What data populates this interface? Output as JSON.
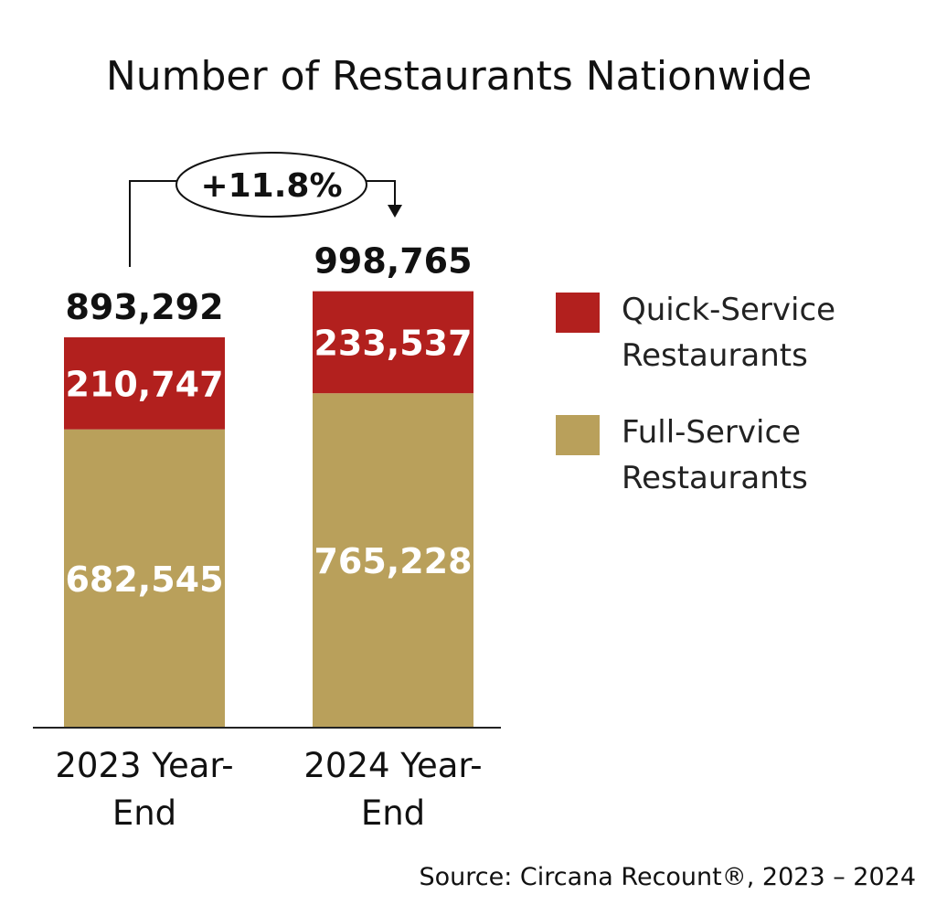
{
  "chart_data": {
    "type": "bar",
    "stacked": true,
    "title": "Number of Restaurants Nationwide",
    "categories": [
      [
        "2023 Year-",
        "End"
      ],
      [
        "2024 Year-",
        "End"
      ]
    ],
    "series": [
      {
        "name": [
          "Full-Service",
          "Restaurants"
        ],
        "color": "#b9a05b",
        "values": [
          682545,
          765228
        ],
        "labels": [
          "682,545",
          "765,228"
        ]
      },
      {
        "name": [
          "Quick-Service",
          "Restaurants"
        ],
        "color": "#b2201e",
        "values": [
          210747,
          233537
        ],
        "labels": [
          "210,747",
          "233,537"
        ]
      }
    ],
    "totals": [
      893292,
      998765
    ],
    "total_labels": [
      "893,292",
      "998,765"
    ],
    "growth_annotation": "+11.8%",
    "legend_position": "right",
    "ylim": [
      0,
      1000000
    ],
    "grid": false,
    "source": "Source: Circana Recount®, 2023 – 2024"
  }
}
